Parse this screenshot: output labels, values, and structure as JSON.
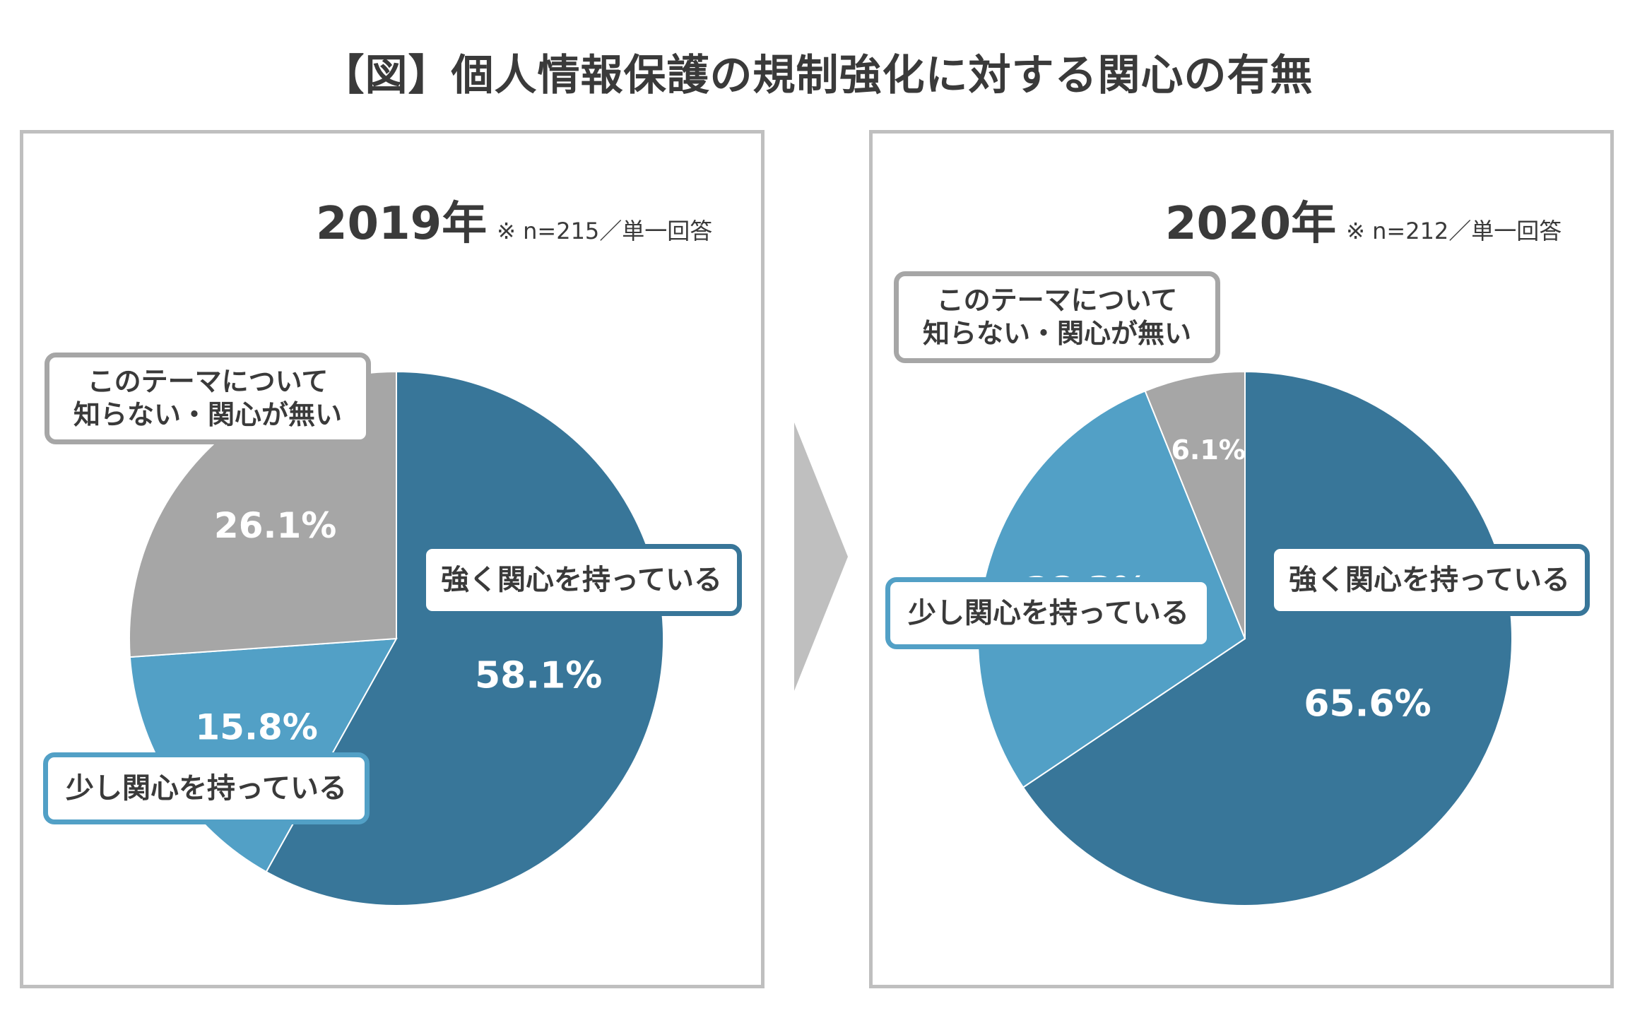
{
  "title": "【図】個人情報保護の規制強化に対する関心の有無",
  "colors": {
    "strong": "#387699",
    "some": "#52a0c6",
    "none": "#a6a6a6",
    "border": "#bfbfbf",
    "text": "#3a3a3a"
  },
  "chart_data": [
    {
      "type": "pie",
      "year_label": "2019年",
      "note": "※ n=215／単一回答",
      "categories": [
        "強く関心を持っている",
        "少し関心を持っている",
        "このテーマについて知らない・関心が無い"
      ],
      "values": [
        58.1,
        15.8,
        26.1
      ],
      "value_labels": [
        "58.1%",
        "15.8%",
        "26.1%"
      ],
      "callouts": [
        {
          "lines": [
            "強く関心を持っている"
          ]
        },
        {
          "lines": [
            "少し関心を持っている"
          ]
        },
        {
          "lines": [
            "このテーマについて",
            "知らない・関心が無い"
          ]
        }
      ]
    },
    {
      "type": "pie",
      "year_label": "2020年",
      "note": "※ n=212／単一回答",
      "categories": [
        "強く関心を持っている",
        "少し関心を持っている",
        "このテーマについて知らない・関心が無い"
      ],
      "values": [
        65.6,
        28.3,
        6.1
      ],
      "value_labels": [
        "65.6%",
        "28.3%",
        "6.1%"
      ],
      "callouts": [
        {
          "lines": [
            "強く関心を持っている"
          ]
        },
        {
          "lines": [
            "少し関心を持っている"
          ]
        },
        {
          "lines": [
            "このテーマについて",
            "知らない・関心が無い"
          ]
        }
      ]
    }
  ]
}
